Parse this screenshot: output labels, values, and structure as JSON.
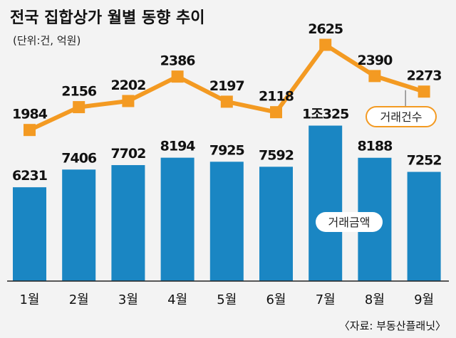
{
  "title": "전국 집합상가 월별 동향 추이",
  "unit": "(단위:건, 억원)",
  "source": "〈자료: 부동산플래닛〉",
  "colors": {
    "bar": "#1a86c3",
    "line": "#f39a22",
    "background": "#f3f3f3",
    "axis": "#222222"
  },
  "chart_data": {
    "type": "bar",
    "categories": [
      "1월",
      "2월",
      "3월",
      "4월",
      "5월",
      "6월",
      "7월",
      "8월",
      "9월"
    ],
    "series": [
      {
        "name": "거래금액",
        "type": "bar",
        "values": [
          6231,
          7406,
          7702,
          8194,
          7925,
          7592,
          10325,
          8188,
          7252
        ],
        "labels": [
          "6231",
          "7406",
          "7702",
          "8194",
          "7925",
          "7592",
          "1조325",
          "8188",
          "7252"
        ]
      },
      {
        "name": "거래건수",
        "type": "line",
        "values": [
          1984,
          2156,
          2202,
          2386,
          2197,
          2118,
          2625,
          2390,
          2273
        ],
        "labels": [
          "1984",
          "2156",
          "2202",
          "2386",
          "2197",
          "2118",
          "2625",
          "2390",
          "2273"
        ]
      }
    ],
    "legend": [
      "거래건수",
      "거래금액"
    ]
  }
}
